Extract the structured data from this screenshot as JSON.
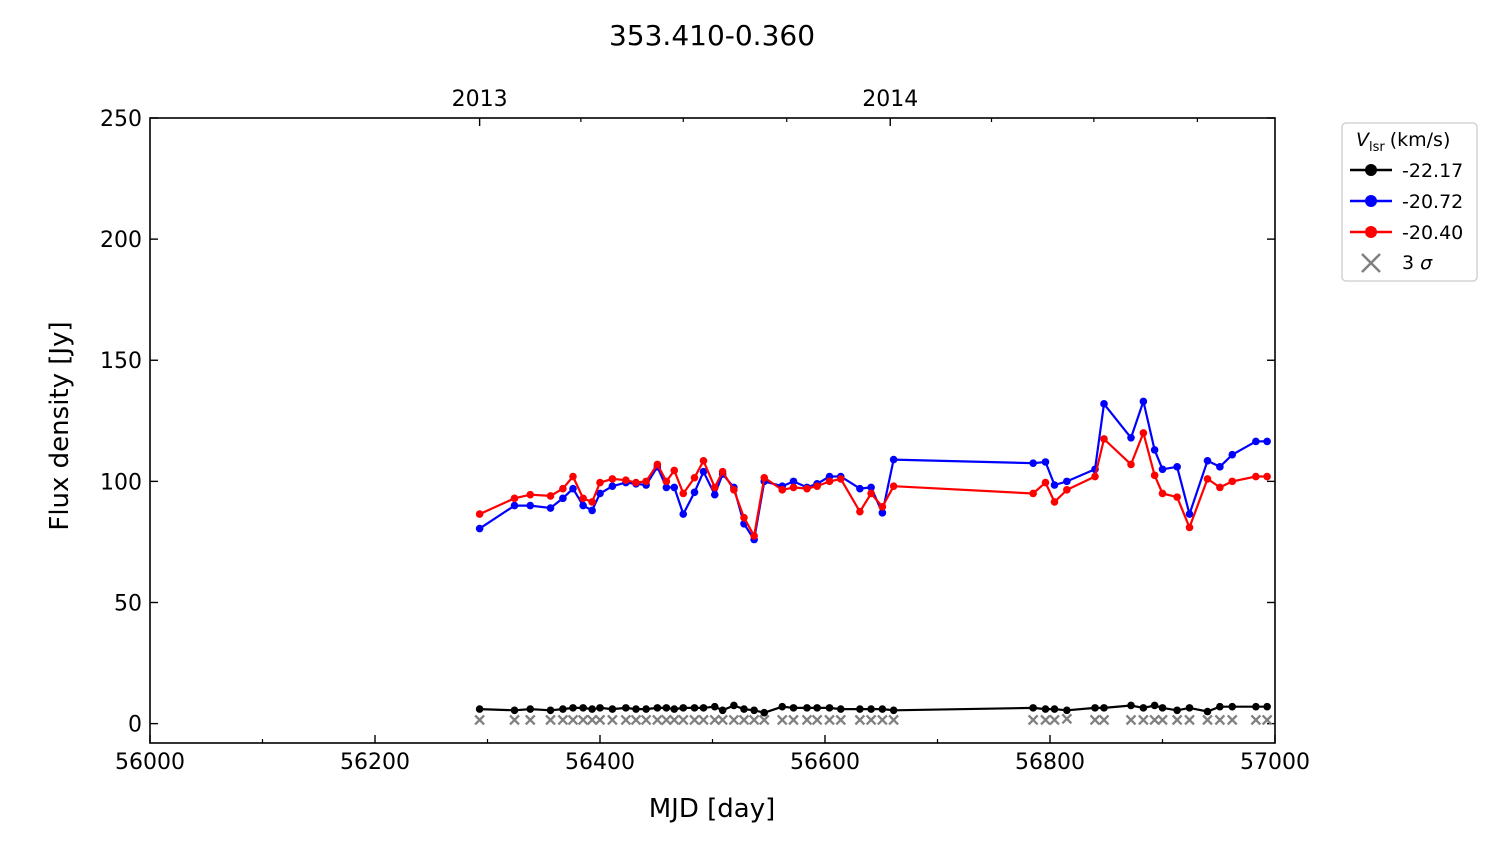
{
  "chart_data": {
    "type": "line",
    "title": "353.410-0.360",
    "xlabel": "MJD [day]",
    "ylabel": "Flux density [Jy]",
    "xlim": [
      56000,
      57000
    ],
    "ylim": [
      -8,
      250
    ],
    "x_ticks": [
      56000,
      56200,
      56400,
      56600,
      56800,
      57000
    ],
    "x_minor_ticks": [
      56100,
      56300,
      56500,
      56700,
      56900
    ],
    "y_ticks": [
      0,
      50,
      100,
      150,
      200,
      250
    ],
    "top_axis": {
      "ticks": [
        {
          "mjd": 56293,
          "label": "2013"
        },
        {
          "mjd": 56658,
          "label": "2014"
        }
      ],
      "minor_ticks": [
        56383,
        56474,
        56566,
        56748,
        56839,
        56931
      ]
    },
    "grid": false,
    "legend": {
      "placement": "outside-right-top",
      "title_main": "V",
      "title_sub": "lsr",
      "title_unit": "(km/s)",
      "sigma_label": "3",
      "sigma_symbol": "σ"
    },
    "series": [
      {
        "name": "-22.17",
        "color": "#000000",
        "x": [
          56293,
          56324,
          56338,
          56356,
          56367,
          56376,
          56385,
          56393,
          56400,
          56411,
          56423,
          56432,
          56441,
          56451,
          56459,
          56466,
          56474,
          56484,
          56492,
          56502,
          56509,
          56519,
          56528,
          56537,
          56546,
          56562,
          56572,
          56584,
          56593,
          56604,
          56614,
          56631,
          56641,
          56651,
          56661,
          56785,
          56796,
          56804,
          56815,
          56840,
          56848,
          56872,
          56883,
          56893,
          56900,
          56913,
          56924,
          56940,
          56951,
          56962,
          56983,
          56993
        ],
        "y": [
          6,
          5.5,
          6,
          5.5,
          6,
          6.5,
          6.5,
          6,
          6.5,
          6,
          6.5,
          6,
          6,
          6.5,
          6.5,
          6,
          6.5,
          6.5,
          6.5,
          7,
          5.5,
          7.5,
          6,
          5.5,
          4.5,
          7,
          6.5,
          6.5,
          6.5,
          6.5,
          6,
          6,
          6,
          6,
          5.5,
          6.5,
          6,
          6,
          5.5,
          6.5,
          6.5,
          7.5,
          6.5,
          7.5,
          6.5,
          5.5,
          6.5,
          5,
          7,
          7,
          7,
          7
        ]
      },
      {
        "name": "-20.72",
        "color": "#0000ff",
        "x": [
          56293,
          56324,
          56338,
          56356,
          56367,
          56376,
          56385,
          56393,
          56400,
          56411,
          56423,
          56432,
          56441,
          56451,
          56459,
          56466,
          56474,
          56484,
          56492,
          56502,
          56509,
          56519,
          56528,
          56537,
          56546,
          56562,
          56572,
          56584,
          56593,
          56604,
          56614,
          56631,
          56641,
          56651,
          56661,
          56785,
          56796,
          56804,
          56815,
          56840,
          56848,
          56872,
          56883,
          56893,
          56900,
          56913,
          56924,
          56940,
          56951,
          56962,
          56983,
          56993
        ],
        "y": [
          80.5,
          90,
          90,
          89,
          93,
          97,
          90,
          88,
          95,
          98,
          99.5,
          99,
          98.5,
          106,
          97.5,
          97.5,
          86.5,
          95.5,
          104,
          94.5,
          103,
          97.5,
          82.5,
          76,
          100,
          98,
          100,
          97.5,
          99,
          102,
          102,
          97,
          97.5,
          87,
          109,
          107.5,
          108,
          98.5,
          100,
          105,
          132,
          118,
          133,
          113,
          105,
          106,
          86.5,
          108.5,
          106,
          111,
          116.5,
          116.5
        ]
      },
      {
        "name": "-20.40",
        "color": "#ff0000",
        "x": [
          56293,
          56324,
          56338,
          56356,
          56367,
          56376,
          56385,
          56393,
          56400,
          56411,
          56423,
          56432,
          56441,
          56451,
          56459,
          56466,
          56474,
          56484,
          56492,
          56502,
          56509,
          56519,
          56528,
          56537,
          56546,
          56562,
          56572,
          56584,
          56593,
          56604,
          56614,
          56631,
          56641,
          56651,
          56661,
          56785,
          56796,
          56804,
          56815,
          56840,
          56848,
          56872,
          56883,
          56893,
          56900,
          56913,
          56924,
          56940,
          56951,
          56962,
          56983,
          56993
        ],
        "y": [
          86.5,
          93,
          94.5,
          94,
          97,
          102,
          93,
          91.5,
          99.5,
          101,
          100.5,
          99.5,
          100,
          107,
          100,
          104.5,
          95,
          101.5,
          108.5,
          97.5,
          104,
          96.5,
          85,
          77.5,
          101.5,
          96.5,
          97.5,
          97,
          98,
          100,
          101,
          87.5,
          95,
          89.5,
          98,
          95,
          99.5,
          91.5,
          96.5,
          102,
          117.5,
          107,
          120,
          102.5,
          95,
          93.5,
          81,
          101,
          97.5,
          100,
          102,
          102
        ]
      }
    ],
    "sigma3": {
      "name": "3 σ",
      "color": "#808080",
      "x": [
        56293,
        56324,
        56338,
        56356,
        56367,
        56376,
        56385,
        56393,
        56400,
        56411,
        56423,
        56432,
        56441,
        56451,
        56459,
        56466,
        56474,
        56484,
        56492,
        56502,
        56509,
        56519,
        56528,
        56537,
        56546,
        56562,
        56572,
        56584,
        56593,
        56604,
        56614,
        56631,
        56641,
        56651,
        56661,
        56785,
        56796,
        56804,
        56815,
        56840,
        56848,
        56872,
        56883,
        56893,
        56900,
        56913,
        56924,
        56940,
        56951,
        56962,
        56983,
        56993
      ],
      "y": [
        1.5,
        1.5,
        1.5,
        1.5,
        1.5,
        1.5,
        1.5,
        1.5,
        1.5,
        1.5,
        1.5,
        1.5,
        1.5,
        1.5,
        1.5,
        1.5,
        1.5,
        1.5,
        1.5,
        1.5,
        1.5,
        1.5,
        1.5,
        1.5,
        1.5,
        1.5,
        1.5,
        1.5,
        1.5,
        1.5,
        1.5,
        1.5,
        1.5,
        1.5,
        1.5,
        1.5,
        1.5,
        1.5,
        2,
        1.5,
        1.5,
        1.5,
        1.5,
        1.5,
        1.5,
        1.5,
        1.5,
        1.5,
        1.5,
        1.5,
        1.5,
        1.5
      ]
    }
  }
}
